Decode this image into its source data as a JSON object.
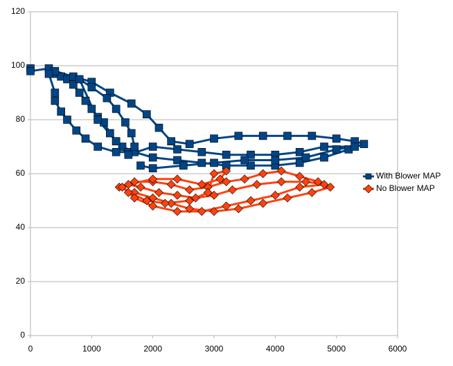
{
  "chart_data": {
    "type": "scatter",
    "xlim": [
      0,
      6000
    ],
    "xticks": [
      0,
      1000,
      2000,
      3000,
      4000,
      5000,
      6000
    ],
    "ylim": [
      0,
      120
    ],
    "yticks": [
      0,
      20,
      40,
      60,
      80,
      100,
      120
    ],
    "grid": true,
    "legend": "right",
    "series": [
      {
        "name": "With Blower MAP",
        "color": "#004586",
        "marker": "square",
        "x": [
          0,
          0,
          300,
          400,
          500,
          600,
          700,
          800,
          900,
          1000,
          1100,
          1200,
          1300,
          1400,
          1500,
          1700,
          2000,
          2400,
          2800,
          3200,
          3600,
          4000,
          4400,
          4800,
          5200,
          5450,
          5300,
          5000,
          4600,
          4200,
          3800,
          3400,
          3000,
          2600,
          2300,
          2100,
          1900,
          1650,
          1300,
          1000,
          700,
          400,
          300,
          400,
          400,
          500,
          600,
          750,
          900,
          1100,
          1400,
          1600,
          1700,
          1650,
          1550,
          1400,
          1250,
          1000,
          800,
          1100,
          1400,
          1600,
          2000,
          2400,
          2800,
          3200,
          3600,
          4000,
          4400,
          4800,
          5300,
          5000,
          4500,
          4000,
          3500,
          3000,
          2500,
          2000,
          1800
        ],
        "y": [
          99,
          98,
          99,
          97,
          96,
          95,
          93,
          90,
          87,
          84,
          81,
          79,
          75,
          72,
          70,
          68,
          66,
          65,
          64,
          63,
          63,
          63,
          64,
          66,
          69,
          71,
          72,
          73,
          74,
          74,
          74,
          74,
          73,
          71,
          72,
          77,
          82,
          86,
          90,
          94,
          96,
          98,
          97,
          90,
          87,
          83,
          80,
          76,
          73,
          70,
          68,
          68,
          70,
          75,
          79,
          84,
          88,
          92,
          95,
          80,
          72,
          67,
          70,
          69,
          68,
          67,
          67,
          67,
          68,
          70,
          70,
          69,
          66,
          65,
          65,
          64,
          63,
          62,
          63
        ]
      },
      {
        "name": "No Blower MAP",
        "color": "#ff420e",
        "marker": "diamond",
        "x": [
          1450,
          1700,
          2000,
          2300,
          2600,
          3000,
          3400,
          3800,
          4200,
          4600,
          4900,
          4700,
          4400,
          4100,
          3800,
          3500,
          3200,
          2900,
          2600,
          2300,
          2000,
          1700,
          1500,
          1700,
          2000,
          2400,
          2800,
          3200,
          3600,
          4000,
          4400,
          4800,
          4500,
          4100,
          3700,
          3300,
          3000,
          2700,
          2400,
          2100,
          1800,
          1600,
          2000,
          2400,
          2800,
          3100,
          3200,
          3000,
          2900,
          2600,
          2200,
          1900,
          1600
        ],
        "y": [
          55,
          53,
          51,
          49,
          47,
          46,
          47,
          49,
          51,
          53,
          55,
          57,
          59,
          61,
          60,
          58,
          57,
          55,
          54,
          56,
          57,
          57,
          55,
          51,
          48,
          46,
          46,
          48,
          50,
          52,
          55,
          56,
          57,
          57,
          56,
          54,
          52,
          51,
          52,
          53,
          55,
          56,
          58,
          58,
          56,
          58,
          61,
          60,
          53,
          50,
          49,
          50,
          53
        ]
      }
    ]
  }
}
